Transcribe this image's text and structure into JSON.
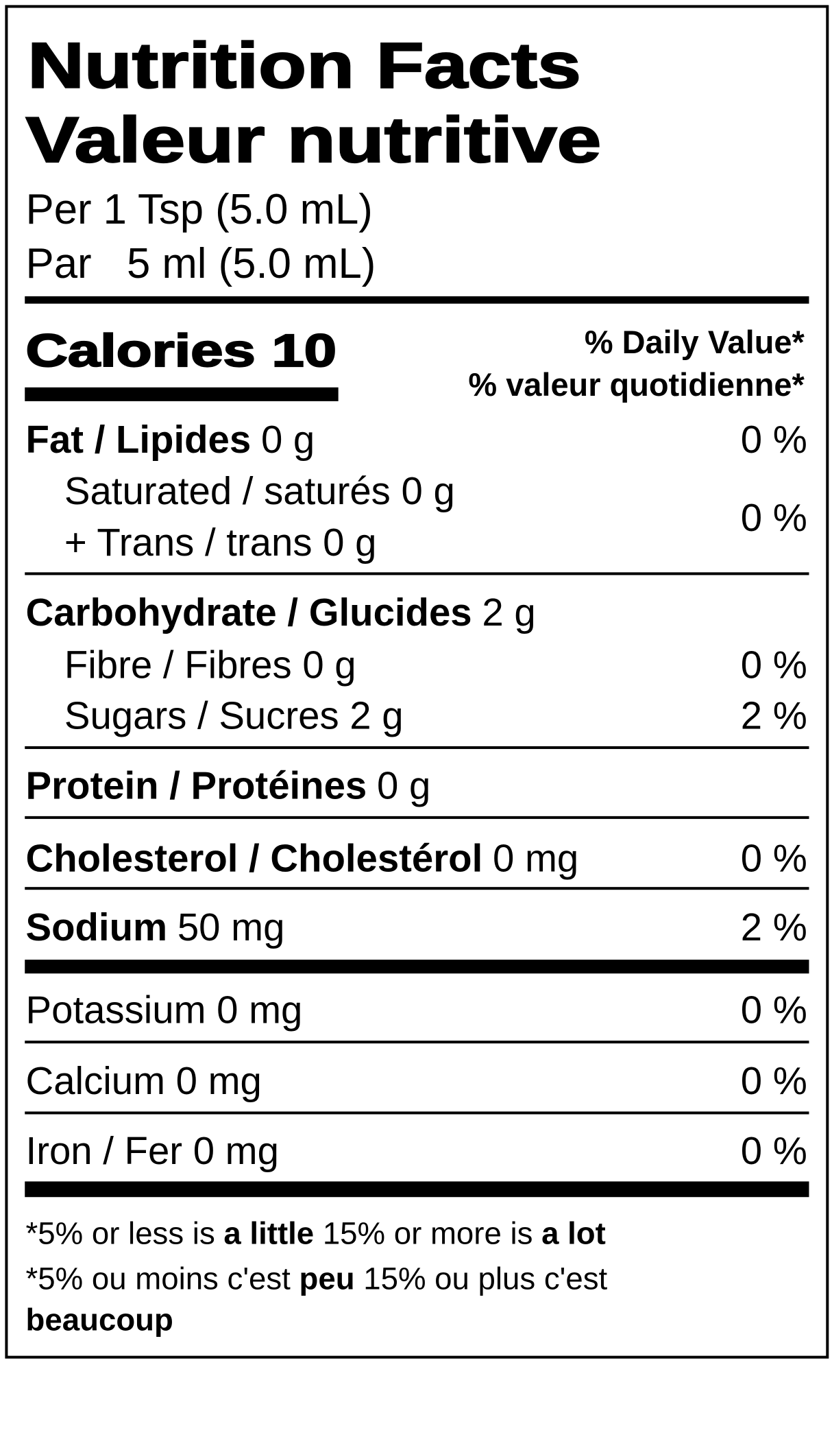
{
  "title": [
    "Nutrition Facts",
    "Valeur nutritive"
  ],
  "serving": [
    "Per 1 Tsp (5.0 mL)",
    "Par   5 ml (5.0 mL)"
  ],
  "calories": {
    "label": "Calories",
    "value": 10
  },
  "daily_value": [
    "% Daily Value*",
    "% valeur quotidienne*"
  ],
  "fat": {
    "name": "Fat / Lipides",
    "amount": "0 g",
    "percent": "0 %",
    "sub": [
      "Saturated / saturés 0 g",
      "+ Trans / trans 0 g"
    ],
    "sub_percent": "0 %"
  },
  "carbohydrate": {
    "name": "Carbohydrate / Glucides",
    "amount": "2 g",
    "sub": [
      {
        "text": "Fibre / Fibres 0 g",
        "percent": "0 %"
      },
      {
        "text": "Sugars / Sucres 2 g",
        "percent": "2 %"
      }
    ]
  },
  "protein": {
    "name": "Protein / Protéines",
    "amount": "0 g"
  },
  "cholesterol": {
    "name": "Cholesterol / Cholestérol",
    "amount": "0 mg",
    "percent": "0 %"
  },
  "sodium": {
    "name": "Sodium",
    "amount": "50 mg",
    "percent": "2 %"
  },
  "potassium": {
    "name": "Potassium 0 mg",
    "percent": "0 %"
  },
  "calcium": {
    "name": "Calcium 0 mg",
    "percent": "0 %"
  },
  "iron": {
    "name": "Iron / Fer 0 mg",
    "percent": "0 %"
  },
  "footnote": [
    [
      {
        "text": "*5% or less is ",
        "bold": false
      },
      {
        "text": "a little",
        "bold": true
      },
      {
        "text": " 15% or more is ",
        "bold": false
      },
      {
        "text": "a lot",
        "bold": true
      }
    ],
    [
      {
        "text": "*5% ou moins c'est ",
        "bold": false
      },
      {
        "text": "peu",
        "bold": true
      },
      {
        "text": " 15% ou plus c'est",
        "bold": false
      }
    ],
    [
      {
        "text": "beaucoup",
        "bold": true
      }
    ]
  ]
}
